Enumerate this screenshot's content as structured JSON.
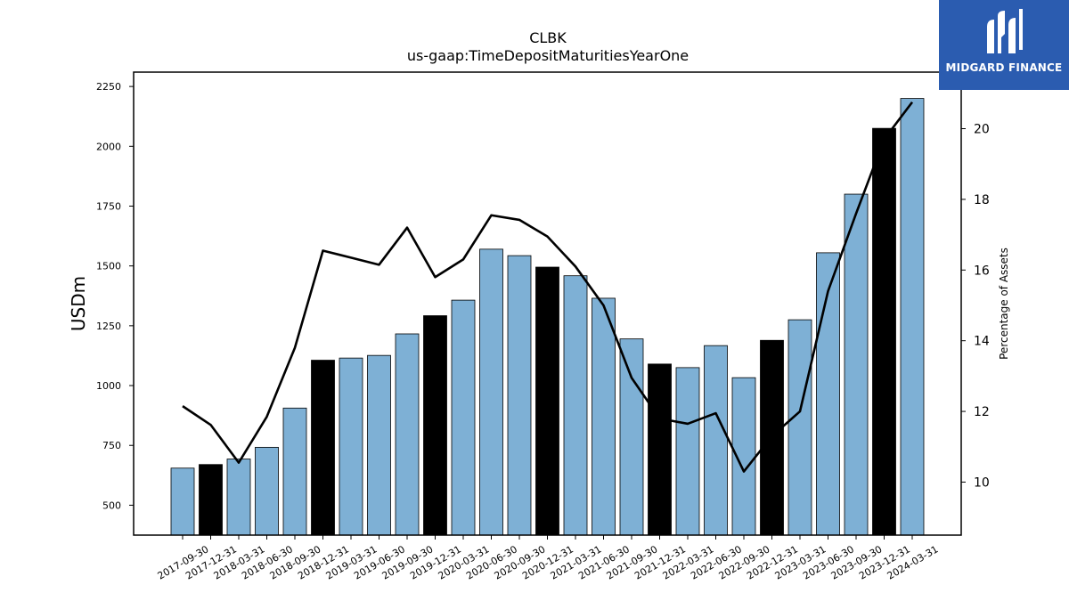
{
  "chart_data": {
    "type": "bar",
    "title": "CLBK",
    "subtitle": "us-gaap:TimeDepositMaturitiesYearOne",
    "ylabel": "USDm",
    "y2label": "Percentage of Assets",
    "ylim": [
      375,
      2310
    ],
    "y2lim": [
      8.5,
      21.6
    ],
    "yticks": [
      500,
      750,
      1000,
      1250,
      1500,
      1750,
      2000,
      2250
    ],
    "y2ticks": [
      10,
      12,
      14,
      16,
      18,
      20
    ],
    "categories": [
      "2017-09-30",
      "2017-12-31",
      "2018-03-31",
      "2018-06-30",
      "2018-09-30",
      "2018-12-31",
      "2019-03-31",
      "2019-06-30",
      "2019-09-30",
      "2019-12-31",
      "2020-03-31",
      "2020-06-30",
      "2020-09-30",
      "2020-12-31",
      "2021-03-31",
      "2021-06-30",
      "2021-09-30",
      "2021-12-31",
      "2022-03-31",
      "2022-06-30",
      "2022-09-30",
      "2022-12-31",
      "2023-03-31",
      "2023-06-30",
      "2023-09-30",
      "2023-12-31",
      "2024-03-31"
    ],
    "values": [
      655,
      670,
      693,
      742,
      906,
      1106,
      1115,
      1126,
      1216,
      1292,
      1357,
      1570,
      1543,
      1495,
      1459,
      1365,
      1195,
      1090,
      1075,
      1167,
      1033,
      1189,
      1275,
      1555,
      1800,
      2075,
      2200
    ],
    "bar_colors": [
      "#7eb0d5",
      "#000000",
      "#7eb0d5",
      "#7eb0d5",
      "#7eb0d5",
      "#000000",
      "#7eb0d5",
      "#7eb0d5",
      "#7eb0d5",
      "#000000",
      "#7eb0d5",
      "#7eb0d5",
      "#7eb0d5",
      "#000000",
      "#7eb0d5",
      "#7eb0d5",
      "#7eb0d5",
      "#000000",
      "#7eb0d5",
      "#7eb0d5",
      "#7eb0d5",
      "#000000",
      "#7eb0d5",
      "#7eb0d5",
      "#7eb0d5",
      "#000000",
      "#7eb0d5"
    ],
    "line_values": [
      12.15,
      11.62,
      10.55,
      11.85,
      13.8,
      16.55,
      16.35,
      16.15,
      17.2,
      15.8,
      16.3,
      17.55,
      17.42,
      16.95,
      16.1,
      15.0,
      12.95,
      11.8,
      11.65,
      11.95,
      10.3,
      11.3,
      12.0,
      15.4,
      17.6,
      19.7,
      20.75
    ],
    "line_color": "#000000",
    "grid": false
  },
  "brand": {
    "name": "MIDGARD FINANCE",
    "color": "#2b5cb0"
  }
}
